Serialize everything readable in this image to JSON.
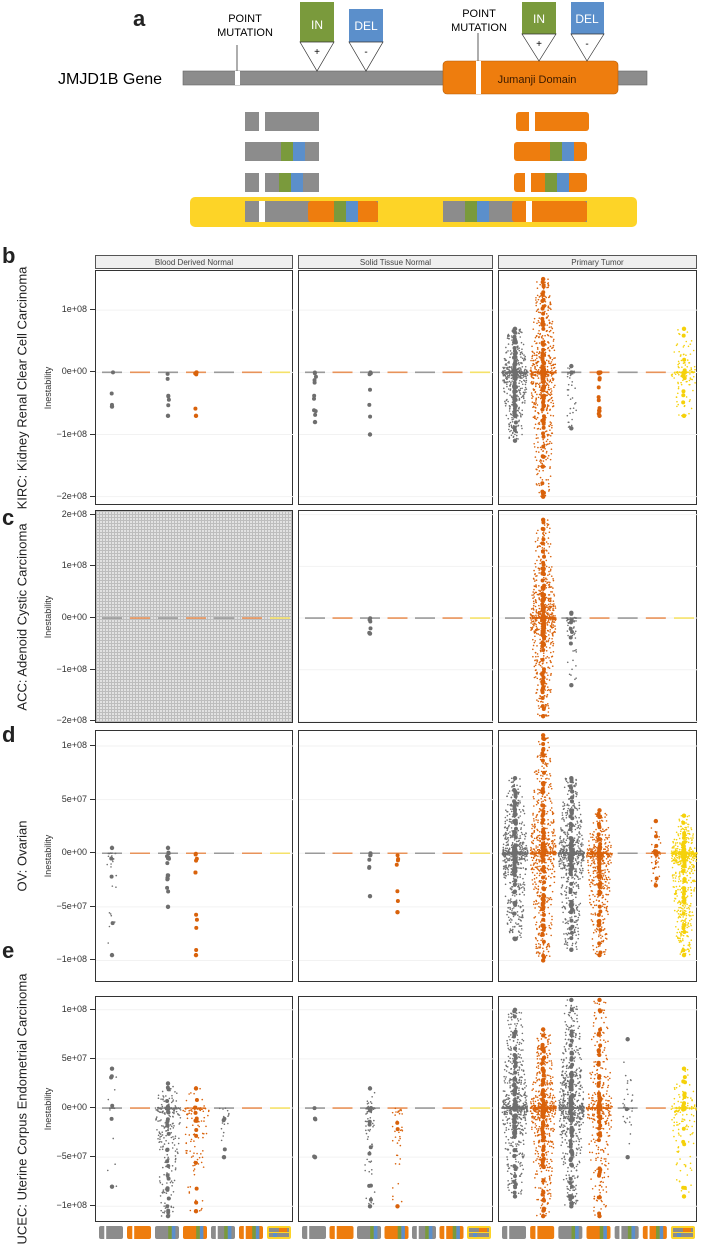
{
  "diagram": {
    "letter": "a",
    "gene_label": "JMJD1B Gene",
    "domain_label": "Jumanji Domain",
    "point_mutation_label_1": "POINT",
    "point_mutation_label_2": "MUTATION",
    "in_label": "IN",
    "del_label": "DEL",
    "plus": "+",
    "minus": "-",
    "colors": {
      "gene": "#8c8c8c",
      "domain": "#ee7d0e",
      "insertion": "#7a9a3c",
      "deletion": "#5b8fcb",
      "highlight": "#fdd427"
    }
  },
  "chart_data": {
    "type": "scatter",
    "subtype": "jitter-strip",
    "ylabel": "Inestability",
    "columns": [
      "Blood Derived Normal",
      "Solid Tissue Normal",
      "Primary Tumor"
    ],
    "category_icons": [
      "point-mutation-outside-domain-icon",
      "point-mutation-in-domain-icon",
      "indel-outside-domain-icon",
      "indel-in-domain-icon",
      "point-and-indel-outside-domain-icon",
      "point-and-indel-in-domain-icon",
      "multi-region-mutation-icon"
    ],
    "category_colors": [
      "#6e6e6e",
      "#d9620b",
      "#6e6e6e",
      "#d9620b",
      "#6e6e6e",
      "#d9620b",
      "#f5d10a"
    ],
    "dash_colors": [
      "#9a9a9a",
      "#e8935a",
      "#9a9a9a",
      "#e8935a",
      "#9a9a9a",
      "#e8935a",
      "#f5e26a"
    ],
    "group_value_format": "[min, max, approx_count] in units of 1e7; count 0 = no spread (only zero line)",
    "panels": [
      {
        "letter": "b",
        "title": "KIRC: Kidney Renal Clear Cell Carcinoma",
        "ylim": [
          -215000000,
          163000000
        ],
        "yticks": [
          100000000,
          0,
          -100000000,
          -200000000
        ],
        "ytick_labels": [
          "1e+08",
          "0e+00",
          "−1e+08",
          "−2e+08"
        ],
        "groups": [
          [
            [
              -5.5,
              0,
              3
            ],
            [
              0,
              0,
              0
            ],
            [
              -7,
              0,
              6
            ],
            [
              -7,
              0,
              5
            ],
            [
              0,
              0,
              0
            ],
            [
              0,
              0,
              0
            ],
            [
              0,
              0,
              0
            ]
          ],
          [
            [
              -8,
              0,
              10
            ],
            [
              0,
              0,
              0
            ],
            [
              -10,
              0,
              6
            ],
            [
              0,
              0,
              0
            ],
            [
              0,
              0,
              0
            ],
            [
              0,
              0,
              0
            ],
            [
              0,
              0,
              0
            ]
          ],
          [
            [
              -11,
              7,
              500
            ],
            [
              -20,
              15,
              2000
            ],
            [
              -9,
              1,
              40
            ],
            [
              -7,
              0,
              15
            ],
            [
              0,
              0,
              0
            ],
            [
              0,
              0,
              0
            ],
            [
              -7,
              7,
              120
            ]
          ]
        ]
      },
      {
        "letter": "c",
        "title": "ACC: Adenoid Cystic Carcinoma",
        "ylim": [
          -205000000,
          207000000
        ],
        "yticks": [
          200000000,
          100000000,
          0,
          -100000000,
          -200000000
        ],
        "ytick_labels": [
          "2e+08",
          "1e+08",
          "0e+00",
          "−1e+08",
          "−2e+08"
        ],
        "no_data_columns": [
          "Blood Derived Normal"
        ],
        "groups": [
          [
            [
              0,
              0,
              0
            ],
            [
              0,
              0,
              0
            ],
            [
              0,
              0,
              0
            ],
            [
              0,
              0,
              0
            ],
            [
              0,
              0,
              0
            ],
            [
              0,
              0,
              0
            ],
            [
              0,
              0,
              0
            ]
          ],
          [
            [
              0,
              0,
              0
            ],
            [
              0,
              0,
              0
            ],
            [
              -3,
              0,
              5
            ],
            [
              0,
              0,
              0
            ],
            [
              0,
              0,
              0
            ],
            [
              0,
              0,
              0
            ],
            [
              0,
              0,
              0
            ]
          ],
          [
            [
              0,
              0,
              0
            ],
            [
              -19,
              19,
              2500
            ],
            [
              -13,
              1,
              50
            ],
            [
              0,
              0,
              0
            ],
            [
              0,
              0,
              0
            ],
            [
              0,
              0,
              0
            ],
            [
              0,
              0,
              0
            ]
          ]
        ]
      },
      {
        "letter": "d",
        "title": "OV: Ovarian",
        "ylim": [
          -121000000,
          114000000
        ],
        "yticks": [
          100000000,
          50000000,
          0,
          -50000000,
          -100000000
        ],
        "ytick_labels": [
          "1e+08",
          "5e+07",
          "0e+00",
          "−5e+07",
          "−1e+08"
        ],
        "groups": [
          [
            [
              -9.5,
              0.5,
              30
            ],
            [
              0,
              0,
              0
            ],
            [
              -5,
              0.5,
              15
            ],
            [
              -9.5,
              0,
              10
            ],
            [
              0,
              0,
              0
            ],
            [
              0,
              0,
              0
            ],
            [
              0,
              0,
              0
            ]
          ],
          [
            [
              0,
              0,
              0
            ],
            [
              0,
              0,
              0
            ],
            [
              -4,
              0,
              8
            ],
            [
              -5.5,
              0,
              6
            ],
            [
              0,
              0,
              0
            ],
            [
              0,
              0,
              0
            ],
            [
              0,
              0,
              0
            ]
          ],
          [
            [
              -8,
              7,
              1500
            ],
            [
              -10,
              11,
              3000
            ],
            [
              -9,
              7,
              1200
            ],
            [
              -9.5,
              4,
              500
            ],
            [
              0,
              0,
              0
            ],
            [
              -3,
              3,
              60
            ],
            [
              -9.5,
              3.5,
              600
            ]
          ]
        ]
      },
      {
        "letter": "e",
        "title": "UCEC: Uterine Corpus Endometrial Carcinoma",
        "ylim": [
          -117000000,
          113000000
        ],
        "yticks": [
          100000000,
          50000000,
          0,
          -50000000,
          -100000000
        ],
        "ytick_labels": [
          "1e+08",
          "5e+07",
          "0e+00",
          "−5e+07",
          "−1e+08"
        ],
        "groups": [
          [
            [
              -8,
              4,
              20
            ],
            [
              0,
              0,
              0
            ],
            [
              -11,
              2.5,
              250
            ],
            [
              -10.5,
              2,
              120
            ],
            [
              -5,
              0,
              20
            ],
            [
              0,
              0,
              0
            ],
            [
              0,
              0,
              0
            ]
          ],
          [
            [
              -5,
              0,
              5
            ],
            [
              0,
              0,
              0
            ],
            [
              -10,
              2,
              80
            ],
            [
              -10,
              0,
              40
            ],
            [
              0,
              0,
              0
            ],
            [
              0,
              0,
              0
            ],
            [
              0,
              0,
              0
            ]
          ],
          [
            [
              -9,
              10,
              1200
            ],
            [
              -11,
              8,
              2500
            ],
            [
              -10,
              11,
              1800
            ],
            [
              -11,
              11,
              400
            ],
            [
              -5,
              7,
              30
            ],
            [
              0,
              0,
              0
            ],
            [
              -9,
              4,
              150
            ]
          ]
        ]
      }
    ]
  }
}
